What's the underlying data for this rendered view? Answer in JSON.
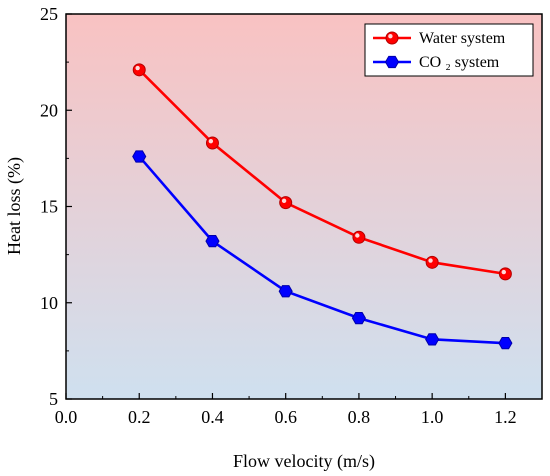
{
  "chart_data": {
    "type": "line",
    "xlabel": "Flow velocity (m/s)",
    "ylabel": "Heat loss (%)",
    "xlim": [
      0.0,
      1.3
    ],
    "ylim": [
      5,
      25
    ],
    "x_ticks": [
      "0.0",
      "0.2",
      "0.4",
      "0.6",
      "0.8",
      "1.0",
      "1.2"
    ],
    "y_ticks": [
      "5",
      "10",
      "15",
      "20",
      "25"
    ],
    "x": [
      0.2,
      0.4,
      0.6,
      0.8,
      1.0,
      1.2
    ],
    "series": [
      {
        "name": "Water system",
        "color": "#ff0000",
        "marker": "circle",
        "values": [
          22.1,
          18.3,
          15.2,
          13.4,
          12.1,
          11.5
        ]
      },
      {
        "name": "CO ₂ system",
        "color": "#0000ff",
        "marker": "hexagon",
        "values": [
          17.6,
          13.2,
          10.6,
          9.2,
          8.1,
          7.9
        ]
      }
    ],
    "legend_position": "top-right",
    "background_gradient": {
      "top": "#f9c2c2",
      "bottom": "#cfe0ef"
    },
    "grid": false
  }
}
